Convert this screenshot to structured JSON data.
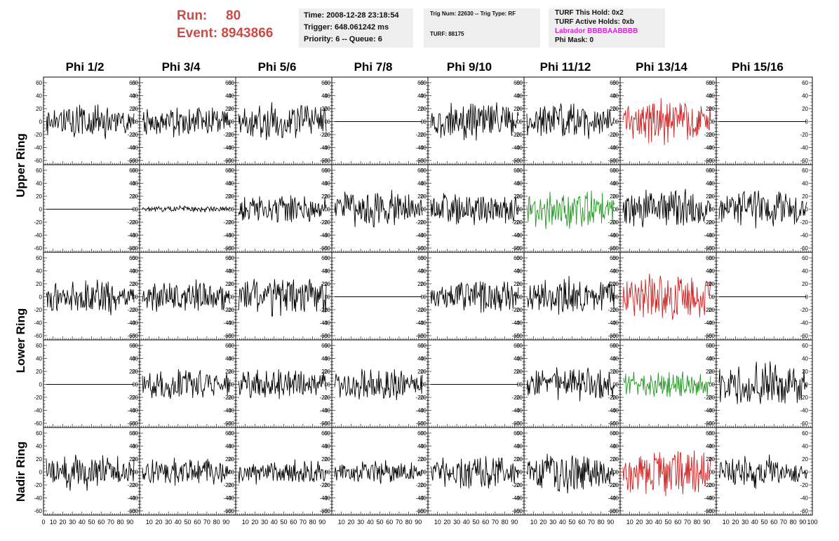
{
  "header": {
    "run_label": "Run:",
    "run_value": "80",
    "event_label": "Event:",
    "event_value": "8943866",
    "time_line": "Time: 2008-12-28 23:18:54",
    "trigger_line": "Trigger: 648.061242 ms",
    "priority_line": "Priority: 6 -- Queue: 6",
    "trig_line": "Trig Num: 22630 -- Trig Type: RF",
    "turf_line": "TURF: 88175",
    "turf_hold": "TURF This Hold: 0x2",
    "turf_active": "TURF Active Holds: 0xb",
    "labrador": "Labrador BBBBAABBBB",
    "phi_mask": "Phi Mask: 0"
  },
  "columns": [
    "Phi 1/2",
    "Phi 3/4",
    "Phi 5/6",
    "Phi 7/8",
    "Phi 9/10",
    "Phi 11/12",
    "Phi 13/14",
    "Phi 15/16"
  ],
  "row_groups": [
    "Upper Ring",
    "Lower Ring",
    "Nadir Ring"
  ],
  "colors": {
    "normal": "#000000",
    "red": "#cc2222",
    "green": "#229922",
    "run_text": "#cc4a44",
    "labrador": "#e020e0"
  },
  "chart_data": {
    "type": "line",
    "title": "",
    "xlabel": "",
    "ylabel": "",
    "xlim": [
      0,
      100
    ],
    "ylim": [
      -60,
      60
    ],
    "y_ticks": [
      -60,
      -40,
      -20,
      0,
      20,
      40,
      60
    ],
    "x_tick_labels": [
      "0",
      "10",
      "20",
      "30",
      "40",
      "50",
      "60",
      "70",
      "80",
      "90",
      "100"
    ],
    "note": "40 waveform panels (5 rows x 8 columns); each trace estimated by amplitude and a representative noise shape",
    "panels": [
      [
        {
          "amp": 22,
          "color": "normal",
          "seed": 11
        },
        {
          "amp": 20,
          "color": "normal",
          "seed": 12
        },
        {
          "amp": 24,
          "color": "normal",
          "seed": 13
        },
        {
          "amp": 0,
          "color": "normal",
          "seed": 14
        },
        {
          "amp": 26,
          "color": "normal",
          "seed": 15
        },
        {
          "amp": 24,
          "color": "normal",
          "seed": 16
        },
        {
          "amp": 30,
          "color": "red",
          "seed": 17
        },
        {
          "amp": 0,
          "color": "normal",
          "seed": 18
        }
      ],
      [
        {
          "amp": 0,
          "color": "normal",
          "seed": 21
        },
        {
          "amp": 4,
          "color": "normal",
          "seed": 22
        },
        {
          "amp": 20,
          "color": "normal",
          "seed": 23
        },
        {
          "amp": 24,
          "color": "normal",
          "seed": 24
        },
        {
          "amp": 22,
          "color": "normal",
          "seed": 25
        },
        {
          "amp": 26,
          "color": "green",
          "seed": 26
        },
        {
          "amp": 26,
          "color": "normal",
          "seed": 27
        },
        {
          "amp": 24,
          "color": "normal",
          "seed": 28
        }
      ],
      [
        {
          "amp": 24,
          "color": "normal",
          "seed": 31
        },
        {
          "amp": 22,
          "color": "normal",
          "seed": 32
        },
        {
          "amp": 26,
          "color": "normal",
          "seed": 33
        },
        {
          "amp": 0,
          "color": "normal",
          "seed": 34
        },
        {
          "amp": 22,
          "color": "normal",
          "seed": 35
        },
        {
          "amp": 24,
          "color": "normal",
          "seed": 36
        },
        {
          "amp": 34,
          "color": "red",
          "seed": 37
        },
        {
          "amp": 0,
          "color": "normal",
          "seed": 38
        }
      ],
      [
        {
          "amp": 0,
          "color": "normal",
          "seed": 41
        },
        {
          "amp": 20,
          "color": "normal",
          "seed": 42
        },
        {
          "amp": 22,
          "color": "normal",
          "seed": 43
        },
        {
          "amp": 22,
          "color": "normal",
          "seed": 44
        },
        {
          "amp": 0,
          "color": "normal",
          "seed": 45
        },
        {
          "amp": 22,
          "color": "normal",
          "seed": 46
        },
        {
          "amp": 18,
          "color": "green",
          "seed": 47
        },
        {
          "amp": 28,
          "color": "normal",
          "seed": 48
        }
      ],
      [
        {
          "amp": 24,
          "color": "normal",
          "seed": 51
        },
        {
          "amp": 18,
          "color": "normal",
          "seed": 52
        },
        {
          "amp": 18,
          "color": "normal",
          "seed": 53
        },
        {
          "amp": 16,
          "color": "normal",
          "seed": 54
        },
        {
          "amp": 22,
          "color": "normal",
          "seed": 55
        },
        {
          "amp": 26,
          "color": "normal",
          "seed": 56
        },
        {
          "amp": 32,
          "color": "red",
          "seed": 57
        },
        {
          "amp": 22,
          "color": "normal",
          "seed": 58
        }
      ]
    ]
  }
}
